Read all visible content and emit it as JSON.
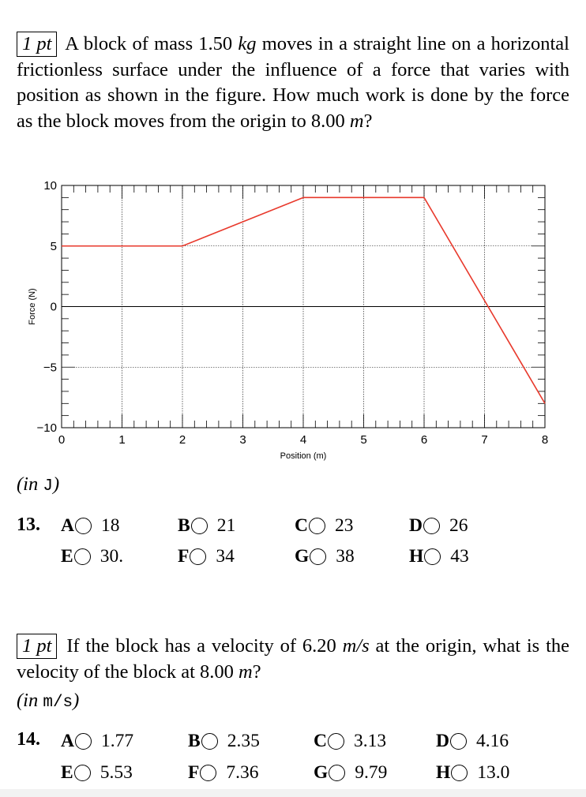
{
  "q13": {
    "pt_label": "1 pt",
    "text_html": "A block of mass 1.50 <i>kg</i> moves in a straight line on a horizontal frictionless surface under the influence of a force that varies with position as shown in the figure. How much work is done by the force as the block moves from the origin to 8.00 <i>m</i>?",
    "unit_prefix": "(in ",
    "unit": "J",
    "unit_suffix": ")",
    "number": "13.",
    "options": [
      {
        "letter": "A",
        "value": "18"
      },
      {
        "letter": "B",
        "value": "21"
      },
      {
        "letter": "C",
        "value": "23"
      },
      {
        "letter": "D",
        "value": "26"
      },
      {
        "letter": "E",
        "value": "30."
      },
      {
        "letter": "F",
        "value": "34"
      },
      {
        "letter": "G",
        "value": "38"
      },
      {
        "letter": "H",
        "value": "43"
      }
    ]
  },
  "q14": {
    "pt_label": "1 pt",
    "text_html": "If the block has a velocity of 6.20 <i>m/s</i> at the origin, what is the velocity of the block at 8.00 <i>m</i>?",
    "unit_prefix": "(in ",
    "unit": "m/s",
    "unit_suffix": ")",
    "number": "14.",
    "options": [
      {
        "letter": "A",
        "value": "1.77"
      },
      {
        "letter": "B",
        "value": "2.35"
      },
      {
        "letter": "C",
        "value": "3.13"
      },
      {
        "letter": "D",
        "value": "4.16"
      },
      {
        "letter": "E",
        "value": "5.53"
      },
      {
        "letter": "F",
        "value": "7.36"
      },
      {
        "letter": "G",
        "value": "9.79"
      },
      {
        "letter": "H",
        "value": "13.0"
      }
    ]
  },
  "chart_data": {
    "type": "line",
    "xlabel": "Position (m)",
    "ylabel": "Force (N)",
    "xlim": [
      0,
      8
    ],
    "ylim": [
      -10,
      10
    ],
    "xticks": [
      0,
      1,
      2,
      3,
      4,
      5,
      6,
      7,
      8
    ],
    "yticks": [
      -10,
      -5,
      0,
      5,
      10
    ],
    "grid": true,
    "line_color": "#e8392c",
    "series": [
      {
        "x": [
          0,
          2,
          4,
          6,
          8
        ],
        "y": [
          5,
          5,
          9,
          9,
          -8
        ]
      }
    ]
  }
}
